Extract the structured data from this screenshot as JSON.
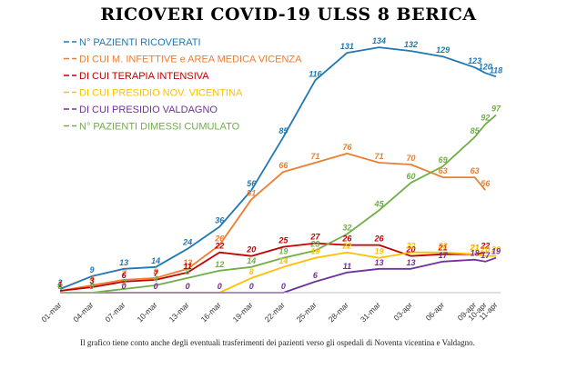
{
  "chart_data": {
    "type": "line",
    "title": "RICOVERI COVID-19 ULSS 8 BERICA",
    "xlabel": "",
    "ylabel": "",
    "ylim": [
      0,
      140
    ],
    "grid": false,
    "legend_position": "top-left",
    "x": [
      "01-mar",
      "02-mar",
      "03-mar",
      "04-mar",
      "05-mar",
      "06-mar",
      "07-mar",
      "08-mar",
      "09-mar",
      "10-mar",
      "11-mar",
      "12-mar",
      "13-mar",
      "14-mar",
      "15-mar",
      "16-mar",
      "17-mar",
      "18-mar",
      "19-mar",
      "20-mar",
      "21-mar",
      "22-mar",
      "23-mar",
      "24-mar",
      "25-mar",
      "26-mar",
      "27-mar",
      "28-mar",
      "29-mar",
      "30-mar",
      "31-mar",
      "01-apr",
      "02-apr",
      "03-apr",
      "04-apr",
      "05-apr",
      "06-apr",
      "07-apr",
      "08-apr",
      "09-apr",
      "10-apr",
      "11-apr"
    ],
    "x_tick_labels": [
      "01-mar",
      "04-mar",
      "07-mar",
      "10-mar",
      "13-mar",
      "16-mar",
      "19-mar",
      "22-mar",
      "25-mar",
      "28-mar",
      "31-mar",
      "03-apr",
      "06-apr",
      "09-apr",
      "10-apr",
      "11-apr"
    ],
    "x_tick_indices": [
      0,
      3,
      6,
      9,
      12,
      15,
      18,
      21,
      24,
      27,
      30,
      33,
      36,
      39,
      40,
      41
    ],
    "series": [
      {
        "name": "N° PAZIENTI RICOVERATI",
        "color": "#1F77B4",
        "values": [
          2,
          null,
          null,
          9,
          null,
          null,
          13,
          null,
          null,
          14,
          null,
          null,
          24,
          null,
          null,
          36,
          null,
          null,
          56,
          null,
          null,
          85,
          null,
          null,
          116,
          null,
          null,
          131,
          null,
          null,
          134,
          null,
          null,
          132,
          null,
          null,
          129,
          null,
          null,
          123,
          120,
          118
        ]
      },
      {
        "name": "DI CUI M. INFETTIVE e AREA MEDICA VICENZA",
        "color": "#ED7D31",
        "values": [
          1,
          null,
          null,
          4,
          null,
          null,
          7,
          null,
          null,
          8,
          null,
          null,
          13,
          null,
          null,
          26,
          null,
          null,
          51,
          null,
          null,
          66,
          null,
          null,
          71,
          null,
          null,
          76,
          null,
          null,
          71,
          null,
          null,
          70,
          null,
          null,
          63,
          null,
          null,
          63,
          56,
          null
        ]
      },
      {
        "name": "DI CUI TERAPIA INTENSIVA",
        "color": "#C00000",
        "values": [
          1,
          null,
          null,
          3,
          null,
          null,
          6,
          null,
          null,
          7,
          null,
          null,
          11,
          null,
          null,
          22,
          null,
          null,
          20,
          null,
          null,
          25,
          null,
          null,
          27,
          null,
          null,
          26,
          null,
          null,
          26,
          null,
          null,
          20,
          null,
          null,
          21,
          null,
          null,
          21,
          22,
          null
        ]
      },
      {
        "name": "DI CUI PRESIDIO NOV. VICENTINA",
        "color": "#FFC000",
        "values": [
          0,
          null,
          null,
          0,
          null,
          null,
          0,
          null,
          null,
          0,
          null,
          null,
          0,
          null,
          null,
          0,
          null,
          null,
          8,
          null,
          null,
          14,
          null,
          null,
          19,
          null,
          null,
          22,
          null,
          null,
          19,
          null,
          null,
          22,
          null,
          null,
          22,
          null,
          null,
          21,
          20,
          20
        ]
      },
      {
        "name": "DI CUI PRESIDIO VALDAGNO",
        "color": "#7030A0",
        "values": [
          0,
          null,
          null,
          0,
          null,
          null,
          0,
          null,
          null,
          0,
          null,
          null,
          0,
          null,
          null,
          0,
          null,
          null,
          0,
          null,
          null,
          0,
          null,
          null,
          6,
          null,
          null,
          11,
          null,
          null,
          13,
          null,
          null,
          13,
          null,
          null,
          17,
          null,
          null,
          18,
          17,
          19
        ]
      },
      {
        "name": "N° PAZIENTI DIMESSI CUMULATO",
        "color": "#70AD47",
        "values": [
          0,
          null,
          null,
          0,
          null,
          null,
          2,
          null,
          null,
          4,
          null,
          null,
          8,
          null,
          null,
          12,
          null,
          null,
          14,
          null,
          null,
          19,
          null,
          null,
          23,
          null,
          null,
          32,
          null,
          null,
          45,
          null,
          null,
          60,
          null,
          null,
          69,
          null,
          null,
          85,
          92,
          97
        ]
      }
    ],
    "data_labels": {
      "N° PAZIENTI RICOVERATI": [
        "2",
        "9",
        "13",
        "14",
        "24",
        "36",
        "56",
        "85",
        "116",
        "131",
        "134",
        "132",
        "129",
        "123",
        "120",
        "118"
      ],
      "DI CUI M. INFETTIVE e AREA MEDICA VICENZA": [
        "1",
        "4",
        "7",
        "8",
        "13",
        "26",
        "51",
        "66",
        "71",
        "76",
        "71",
        "70",
        "63",
        "63",
        "56"
      ],
      "DI CUI TERAPIA INTENSIVA": [
        "1",
        "3",
        "6",
        "7",
        "11",
        "22",
        "20",
        "25",
        "27",
        "26",
        "26",
        "20",
        "21",
        "21",
        "22"
      ],
      "DI CUI PRESIDIO NOV. VICENTINA": [
        "0",
        "0",
        "0",
        "0",
        "0",
        "0",
        "8",
        "14",
        "19",
        "22",
        "19",
        "22",
        "22",
        "21",
        "20",
        "20"
      ],
      "DI CUI PRESIDIO VALDAGNO": [
        "0",
        "0",
        "0",
        "0",
        "0",
        "0",
        "0",
        "0",
        "6",
        "11",
        "13",
        "13",
        "17",
        "18",
        "17",
        "19"
      ],
      "N° PAZIENTI DIMESSI CUMULATO": [
        "0",
        "0",
        "2",
        "4",
        "8",
        "12",
        "14",
        "19",
        "23",
        "32",
        "45",
        "60",
        "69",
        "85",
        "92",
        "97"
      ]
    },
    "footnote": "Il grafico tiene conto anche degli eventuali trasferimenti dei pazienti verso gli ospedali di Noventa vicentina e Valdagno."
  }
}
